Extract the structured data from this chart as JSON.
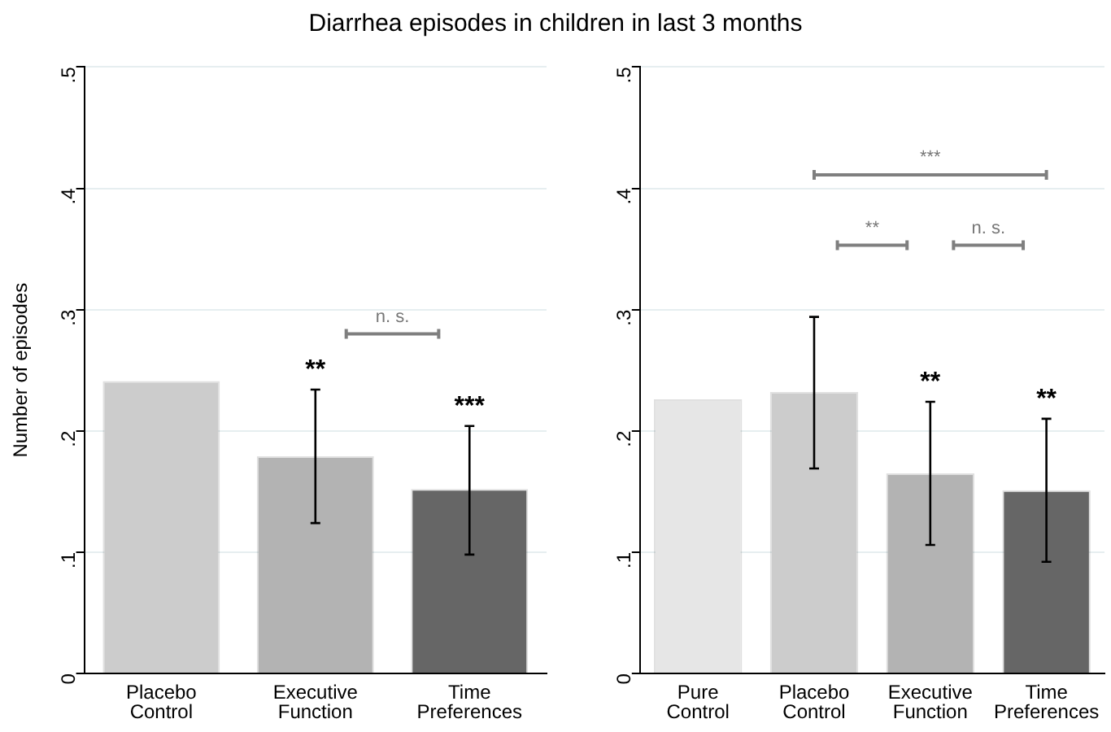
{
  "chart_data": [
    {
      "type": "bar",
      "title": "Diarrhea episodes in children in last 3 months",
      "ylabel": "Number of episodes",
      "categories": [
        "Placebo Control",
        "Executive Function",
        "Time Preferences"
      ],
      "values": [
        0.241,
        0.179,
        0.152
      ],
      "colors": [
        "#cccccc",
        "#b3b3b3",
        "#666666"
      ],
      "errors": [
        null,
        [
          0.124,
          0.234
        ],
        [
          0.098,
          0.204
        ]
      ],
      "ylim": [
        0,
        0.5
      ],
      "yticks": [
        {
          "value": 0,
          "label": "0"
        },
        {
          "value": 0.1,
          "label": ".1"
        },
        {
          "value": 0.2,
          "label": ".2"
        },
        {
          "value": 0.3,
          "label": ".3"
        },
        {
          "value": 0.4,
          "label": ".4"
        },
        {
          "value": 0.5,
          "label": ".5"
        }
      ],
      "grid": "y",
      "legend": false,
      "annotations": [
        "**",
        "***",
        "n. s."
      ]
    },
    {
      "type": "bar",
      "categories": [
        "Pure Control",
        "Placebo Control",
        "Executive Function",
        "Time Preferences"
      ],
      "values": [
        0.226,
        0.232,
        0.165,
        0.151
      ],
      "colors": [
        "#e6e6e6",
        "#cccccc",
        "#b3b3b3",
        "#666666"
      ],
      "errors": [
        null,
        [
          0.169,
          0.294
        ],
        [
          0.106,
          0.224
        ],
        [
          0.092,
          0.21
        ]
      ],
      "ylim": [
        0,
        0.5
      ],
      "yticks": [
        {
          "value": 0,
          "label": "0"
        },
        {
          "value": 0.1,
          "label": ".1"
        },
        {
          "value": 0.2,
          "label": ".2"
        },
        {
          "value": 0.3,
          "label": ".3"
        },
        {
          "value": 0.4,
          "label": ".4"
        },
        {
          "value": 0.5,
          "label": ".5"
        }
      ],
      "grid": "y",
      "legend": false,
      "annotations": [
        "**",
        "**",
        "**",
        "n. s.",
        "***"
      ]
    }
  ]
}
